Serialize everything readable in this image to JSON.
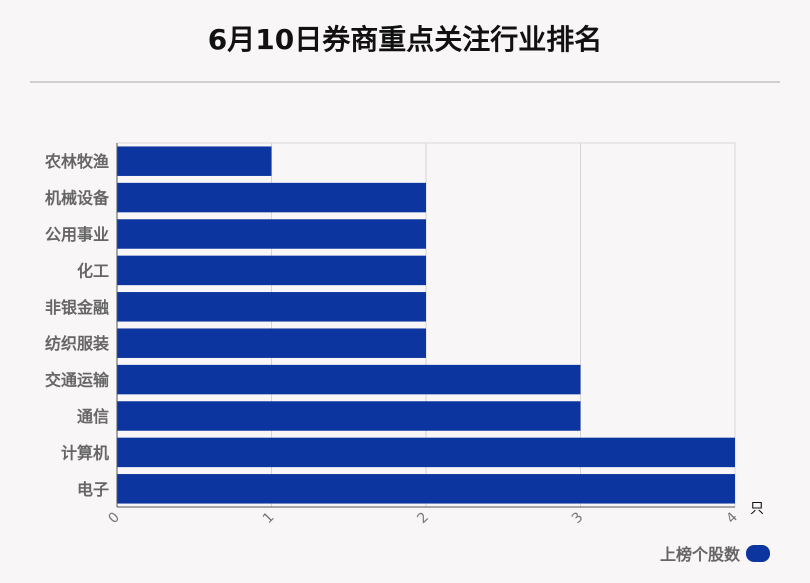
{
  "chart_data": {
    "type": "bar",
    "orientation": "horizontal",
    "title": "6月10日券商重点关注行业排名",
    "categories": [
      "农林牧渔",
      "机械设备",
      "公用事业",
      "化工",
      "非银金融",
      "纺织服装",
      "交通运输",
      "通信",
      "计算机",
      "电子"
    ],
    "series": [
      {
        "name": "上榜个股数",
        "values": [
          1,
          2,
          2,
          2,
          2,
          2,
          3,
          3,
          4,
          4
        ]
      }
    ],
    "xlim": [
      0,
      4
    ],
    "x_ticks": [
      "0",
      "1",
      "2",
      "3",
      "4"
    ],
    "x_unit": "只",
    "grid": true,
    "legend_position": "bottom-right",
    "bar_color": "#0d35a0"
  }
}
